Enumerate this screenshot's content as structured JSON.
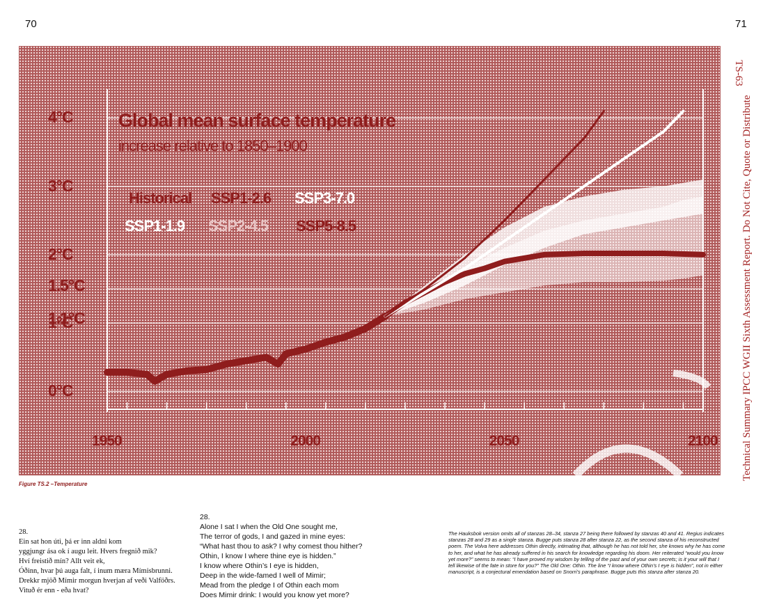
{
  "page_numbers": {
    "left": "70",
    "right": "71"
  },
  "side_code": "TS-63",
  "side_title": "Technical Summary IPCC WGII Sixth Assessment Report. Do Not Cite, Quote or Distribute",
  "figure": {
    "caption": "Figure TS.2 –Temperature",
    "colors": {
      "background": "#b05a5a",
      "dots": "#f4dede",
      "accent": "#8f1d1d",
      "light": "#ffffff"
    },
    "chart_data": {
      "type": "line",
      "title": "Global mean surface temperature",
      "subtitle": "increase relative to 1850–1900",
      "xlabel": "",
      "ylabel": "",
      "xlim": [
        1950,
        2100
      ],
      "ylim": [
        -0.2,
        4.3
      ],
      "yticks": [
        {
          "label": "0°C",
          "value": 0
        },
        {
          "label": "1°C",
          "value": 1
        },
        {
          "label": "1.1°C",
          "value": 1.1
        },
        {
          "label": "1.5°C",
          "value": 1.5
        },
        {
          "label": "2°C",
          "value": 2
        },
        {
          "label": "3°C",
          "value": 3
        },
        {
          "label": "4°C",
          "value": 4
        }
      ],
      "xticks": [
        {
          "label": "1950",
          "value": 1950
        },
        {
          "label": "2000",
          "value": 2000
        },
        {
          "label": "2050",
          "value": 2050
        },
        {
          "label": "2100",
          "value": 2100
        }
      ],
      "legend": {
        "row1": [
          {
            "label": "Historical",
            "style": "dark"
          },
          {
            "label": "SSP1-2.6",
            "style": "dark"
          },
          {
            "label": "SSP3-7.0",
            "style": "light"
          }
        ],
        "row2": [
          {
            "label": "SSP1-1.9",
            "style": "light"
          },
          {
            "label": "SSP2-4.5",
            "style": "faint"
          },
          {
            "label": "SSP5-8.5",
            "style": "dark"
          }
        ]
      },
      "series": [
        {
          "name": "Historical",
          "x": [
            1950,
            1955,
            1960,
            1962,
            1965,
            1970,
            1975,
            1980,
            1985,
            1990,
            1993,
            1995,
            2000,
            2005,
            2010,
            2015,
            2020
          ],
          "y": [
            0.28,
            0.28,
            0.25,
            0.15,
            0.25,
            0.3,
            0.32,
            0.4,
            0.45,
            0.5,
            0.4,
            0.55,
            0.62,
            0.72,
            0.8,
            0.92,
            1.1
          ]
        },
        {
          "name": "SSP1-2.6",
          "x": [
            2020,
            2025,
            2030,
            2035,
            2040,
            2045,
            2050,
            2060,
            2070,
            2080,
            2090,
            2100
          ],
          "y": [
            1.1,
            1.3,
            1.45,
            1.6,
            1.72,
            1.8,
            1.9,
            2.0,
            2.02,
            2.02,
            2.02,
            2.0
          ]
        },
        {
          "name": "SSP3-7.0",
          "x": [
            2020,
            2030,
            2040,
            2050,
            2060,
            2070,
            2080,
            2090,
            2095
          ],
          "y": [
            1.1,
            1.45,
            1.8,
            2.2,
            2.6,
            3.0,
            3.4,
            3.8,
            4.1
          ]
        },
        {
          "name": "SSP5-8.5",
          "x": [
            2020,
            2030,
            2040,
            2050,
            2060,
            2070,
            2075
          ],
          "y": [
            1.1,
            1.5,
            1.95,
            2.5,
            3.1,
            3.7,
            4.1
          ]
        }
      ]
    }
  },
  "poem_left": {
    "number": "28.",
    "lines": [
      "Ein sat hon úti, þá er inn aldni kom",
      "yggjungr ása ok í augu leit. Hvers fregnið mik?",
      "Hví freistið mín? Allt veit ek,",
      "Óðinn, hvar þú auga falt, í inum mæra Mímisbrunni.",
      "Drekkr mjöð Mímir morgun hverjan af veði Valföðrs.",
      "Vituð ér enn - eða hvat?"
    ]
  },
  "poem_mid": {
    "number": "28.",
    "lines": [
      "Alone I sat I when the Old One sought me,",
      "The terror of gods, I and gazed in mine eyes:",
      "“What hast thou to ask? I why comest thou hither?",
      "Othin, I know I where thine eye is hidden.”",
      "I know where Othin’s I eye is hidden,",
      "Deep in the wide-famed I well of Mimir;",
      "Mead from the pledge I of Othin each mom",
      "Does Mimir drink: I would you know yet more?"
    ]
  },
  "note": "The Hauksbok version omits all of stanzas 28–34, stanza 27 being there followed by stanzas 40 and 41. Regius indicates stanzas 28 and 29 as a single stanza. Bugge puts stanza 28 after stanza 22, as the second stanza of his reconstructed poem. The Volva here addresses Othin directly, intimating that, although he has not told her, she knows why he has come to her, and what he has already suffered in his search for knowledge regarding his doom. Her reiterated “would you know yet more?” seems to mean: “I have proved my wisdom by telling of the past and of your own secrets; is it your will that I tell likewise of the fate in store for you?” The Old One: Othin. The line “I know where Othin’s I eye is hidden”, not in either manuscript, is a conjectural emendation based on Snorri’s paraphrase. Bugge puts this stanza after stanza 20."
}
